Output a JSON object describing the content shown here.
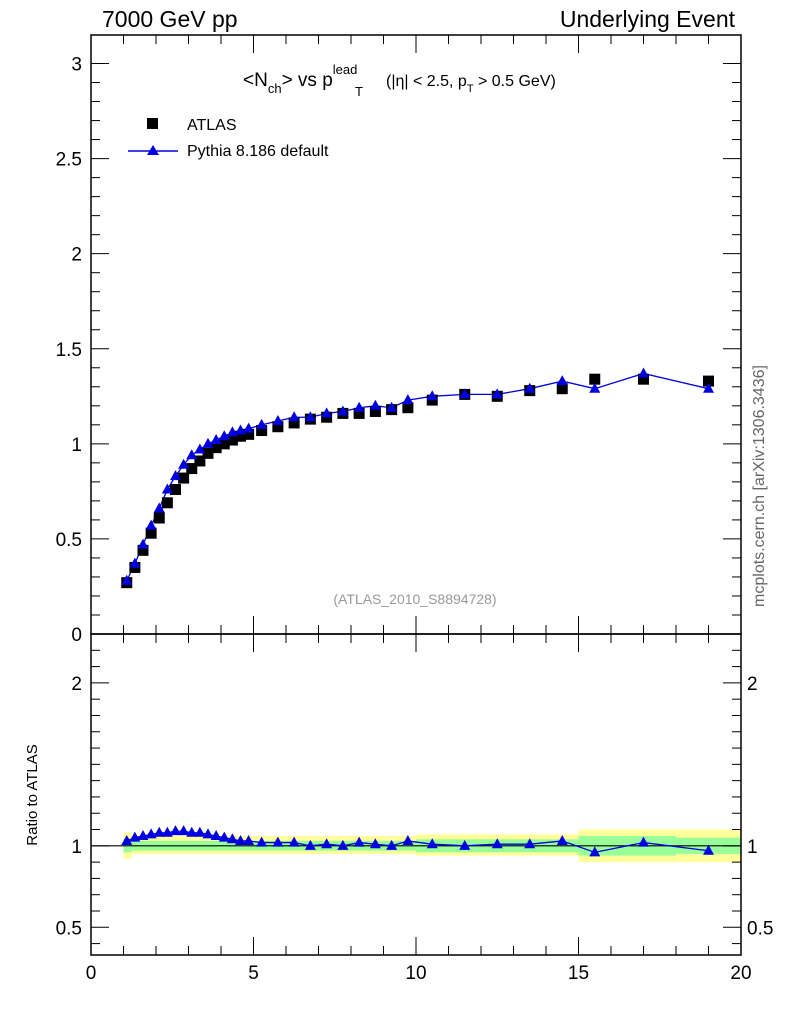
{
  "header": {
    "left": "7000 GeV pp",
    "right": "Underlying Event"
  },
  "side_label": "mcplots.cern.ch [arXiv:1306.3436]",
  "analysis_id": "(ATLAS_2010_S8894728)",
  "colors": {
    "data": "#000000",
    "mc": "#0000e0",
    "band_inner": "#99ff99",
    "band_outer": "#ffff99"
  },
  "chart_data": [
    {
      "type": "scatter",
      "title": {
        "main": "<N",
        "main_sub": "ch",
        "mid": "> vs p",
        "mid_sup": "lead",
        "mid_sub": "T",
        "cond_a": "(|η| < 2.5, p",
        "cond_sub": "T",
        "cond_b": " > 0.5 GeV)"
      },
      "xlim": [
        0,
        20
      ],
      "ylim": [
        0,
        3.15
      ],
      "y_ticks": [
        {
          "v": 0,
          "label": "0"
        },
        {
          "v": 0.5,
          "label": "0.5"
        },
        {
          "v": 1,
          "label": "1"
        },
        {
          "v": 1.5,
          "label": "1.5"
        },
        {
          "v": 2,
          "label": "2"
        },
        {
          "v": 2.5,
          "label": "2.5"
        },
        {
          "v": 3,
          "label": "3"
        }
      ],
      "legend": [
        "ATLAS",
        "Pythia 8.186 default"
      ],
      "legend_position": "top-left",
      "x": [
        1.1,
        1.35,
        1.6,
        1.85,
        2.1,
        2.35,
        2.6,
        2.85,
        3.1,
        3.35,
        3.6,
        3.85,
        4.1,
        4.35,
        4.6,
        4.85,
        5.25,
        5.75,
        6.25,
        6.75,
        7.25,
        7.75,
        8.25,
        8.75,
        9.25,
        9.75,
        10.5,
        11.5,
        12.5,
        13.5,
        14.5,
        15.5,
        17,
        19
      ],
      "series": [
        {
          "name": "ATLAS",
          "values": [
            0.27,
            0.35,
            0.44,
            0.53,
            0.61,
            0.69,
            0.76,
            0.82,
            0.87,
            0.91,
            0.95,
            0.98,
            1.0,
            1.02,
            1.04,
            1.05,
            1.07,
            1.09,
            1.11,
            1.13,
            1.14,
            1.16,
            1.16,
            1.17,
            1.18,
            1.19,
            1.23,
            1.26,
            1.25,
            1.28,
            1.29,
            1.34,
            1.34,
            1.33
          ]
        },
        {
          "name": "Pythia 8.186 default",
          "values": [
            0.28,
            0.37,
            0.47,
            0.57,
            0.66,
            0.76,
            0.83,
            0.89,
            0.94,
            0.97,
            1.0,
            1.02,
            1.04,
            1.06,
            1.07,
            1.08,
            1.1,
            1.12,
            1.14,
            1.14,
            1.16,
            1.17,
            1.19,
            1.2,
            1.19,
            1.23,
            1.25,
            1.26,
            1.26,
            1.29,
            1.33,
            1.29,
            1.37,
            1.29
          ]
        }
      ]
    },
    {
      "type": "line",
      "ylabel": "Ratio to ATLAS",
      "xlim": [
        0,
        20
      ],
      "ylim": [
        0.33,
        2.3
      ],
      "x_ticks": [
        {
          "v": 0,
          "label": "0"
        },
        {
          "v": 5,
          "label": "5"
        },
        {
          "v": 10,
          "label": "10"
        },
        {
          "v": 15,
          "label": "15"
        },
        {
          "v": 20,
          "label": "20"
        }
      ],
      "y_ticks": [
        {
          "v": 0.5,
          "label": "0.5"
        },
        {
          "v": 1,
          "label": "1"
        },
        {
          "v": 2,
          "label": "2"
        }
      ],
      "x": [
        1.1,
        1.35,
        1.6,
        1.85,
        2.1,
        2.35,
        2.6,
        2.85,
        3.1,
        3.35,
        3.6,
        3.85,
        4.1,
        4.35,
        4.6,
        4.85,
        5.25,
        5.75,
        6.25,
        6.75,
        7.25,
        7.75,
        8.25,
        8.75,
        9.25,
        9.75,
        10.5,
        11.5,
        12.5,
        13.5,
        14.5,
        15.5,
        17,
        19
      ],
      "series": [
        {
          "name": "Pythia 8.186 default",
          "values": [
            1.03,
            1.05,
            1.06,
            1.07,
            1.08,
            1.08,
            1.09,
            1.09,
            1.08,
            1.08,
            1.07,
            1.06,
            1.05,
            1.04,
            1.03,
            1.03,
            1.02,
            1.02,
            1.02,
            1.0,
            1.01,
            1.0,
            1.02,
            1.01,
            1.0,
            1.03,
            1.01,
            1.0,
            1.01,
            1.01,
            1.03,
            0.96,
            1.02,
            0.97
          ]
        }
      ],
      "bands": [
        {
          "x0": 1.0,
          "x1": 1.25,
          "inner": [
            0.96,
            1.04
          ],
          "outer": [
            0.92,
            1.08
          ]
        },
        {
          "x0": 1.25,
          "x1": 10.0,
          "inner": [
            0.97,
            1.03
          ],
          "outer": [
            0.95,
            1.06
          ]
        },
        {
          "x0": 10.0,
          "x1": 15.0,
          "inner": [
            0.96,
            1.04
          ],
          "outer": [
            0.94,
            1.07
          ]
        },
        {
          "x0": 15.0,
          "x1": 18.0,
          "inner": [
            0.94,
            1.06
          ],
          "outer": [
            0.9,
            1.1
          ]
        },
        {
          "x0": 18.0,
          "x1": 20.0,
          "inner": [
            0.95,
            1.05
          ],
          "outer": [
            0.9,
            1.1
          ]
        }
      ]
    }
  ]
}
